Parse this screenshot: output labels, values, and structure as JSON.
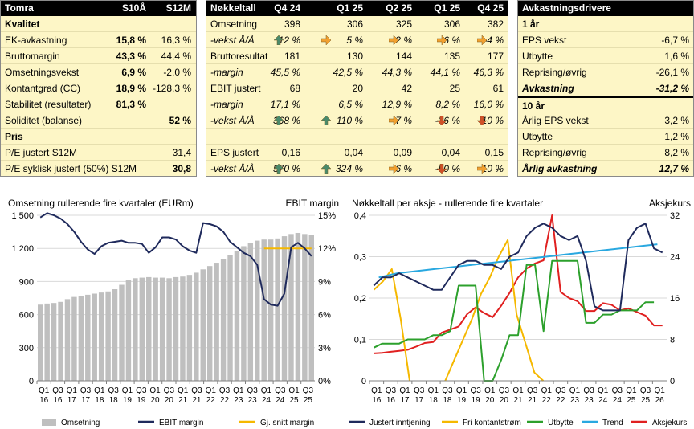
{
  "kvalitet": {
    "title": "Tomra",
    "col1": "S10Å",
    "col2": "S12M",
    "rows": [
      {
        "label": "Kvalitet",
        "v1": "",
        "v2": "",
        "bold": true
      },
      {
        "label": "EK-avkastning",
        "v1": "15,8 %",
        "v2": "16,3 %"
      },
      {
        "label": "Bruttomargin",
        "v1": "43,3 %",
        "v2": "44,4 %"
      },
      {
        "label": "Omsetningsvekst",
        "v1": "6,9 %",
        "v2": "-2,0 %"
      },
      {
        "label": "Kontantgrad (CC)",
        "v1": "18,9 %",
        "v2": "-128,3 %"
      },
      {
        "label": "Stabilitet (resultater)",
        "v1": "81,3 %",
        "v2": ""
      },
      {
        "label": "Soliditet (balanse)",
        "v1": "",
        "v2": "52 %",
        "v2bold": true
      },
      {
        "label": "Pris",
        "v1": "",
        "v2": "",
        "bold": true
      },
      {
        "label": "P/E justert S12M",
        "v1": "",
        "v2": "31,4"
      },
      {
        "label": "P/E syklisk justert (50%) S12M",
        "v1": "",
        "v2": "30,8",
        "v2bold": true
      }
    ]
  },
  "nokkeltall": {
    "title": "Nøkkeltall",
    "cols": [
      "Q4 24",
      "Q1 25",
      "Q2 25",
      "Q1 25",
      "Q4 25"
    ],
    "rows": [
      {
        "label": "Omsetning",
        "values": [
          "398",
          "306",
          "325",
          "306",
          "382"
        ]
      },
      {
        "label": "-vekst Å/Å",
        "italic": true,
        "values": [
          "12 %",
          "5 %",
          "-2 %",
          "-6 %",
          "-4 %"
        ],
        "arrows": [
          "up",
          "right",
          "right",
          "right",
          "right"
        ]
      },
      {
        "label": "Bruttoresultat",
        "values": [
          "181",
          "130",
          "144",
          "135",
          "177"
        ]
      },
      {
        "label": "-margin",
        "italic": true,
        "values": [
          "45,5 %",
          "42,5 %",
          "44,3 %",
          "44,1 %",
          "46,3 %"
        ]
      },
      {
        "label": "EBIT justert",
        "values": [
          "68",
          "20",
          "42",
          "25",
          "61"
        ]
      },
      {
        "label": "-margin",
        "italic": true,
        "values": [
          "17,1 %",
          "6,5 %",
          "12,9 %",
          "8,2 %",
          "16,0 %"
        ]
      },
      {
        "label": "-vekst Å/Å",
        "italic": true,
        "values": [
          "368 %",
          "110 %",
          "7 %",
          "-36 %",
          "-10 %"
        ],
        "arrows": [
          "up",
          "up",
          "right",
          "down",
          "down"
        ]
      },
      {
        "label": "",
        "values": [
          "",
          "",
          "",
          "",
          ""
        ]
      },
      {
        "label": "EPS justert",
        "values": [
          "0,16",
          "0,04",
          "0,09",
          "0,04",
          "0,15"
        ]
      },
      {
        "label": "-vekst Å/Å",
        "italic": true,
        "values": [
          "570 %",
          "324 %",
          "6 %",
          "-50 %",
          "-10 %"
        ],
        "arrows": [
          "up",
          "up",
          "right",
          "down",
          "right"
        ]
      }
    ]
  },
  "avkastning": {
    "title": "Avkastningsdrivere",
    "rows": [
      {
        "label": "1 år",
        "value": "",
        "bold": true
      },
      {
        "label": "EPS vekst",
        "value": "-6,7 %"
      },
      {
        "label": "Utbytte",
        "value": "1,6 %"
      },
      {
        "label": "Reprising/øvrig",
        "value": "-26,1 %"
      },
      {
        "label": "Avkastning",
        "value": "-31,2 %",
        "bold": true,
        "italic": true
      },
      {
        "label": "10 år",
        "value": "",
        "bold": true
      },
      {
        "label": "Årlig EPS vekst",
        "value": "3,2 %"
      },
      {
        "label": "Utbytte",
        "value": "1,2 %"
      },
      {
        "label": "Reprising/øvrig",
        "value": "8,2 %"
      },
      {
        "label": "Årlig avkastning",
        "value": "12,7 %",
        "bold": true,
        "italic": true
      }
    ]
  },
  "colors": {
    "panel_bg": "#fdf6c6",
    "bar": "#bfbfbf",
    "navy": "#1f2a5c",
    "orange": "#f5b800",
    "green": "#2ca02c",
    "blue": "#29a8e0",
    "red": "#e02020",
    "arrow_up": "#4a8a6a",
    "arrow_right": "#f0a030",
    "arrow_down": "#d05028"
  },
  "chart_data": [
    {
      "type": "bar",
      "title": "Omsetning rullerende fire kvartaler (EURm)",
      "ylabel_right": "EBIT margin",
      "ylim": [
        0,
        1500
      ],
      "yticks": [
        "0",
        "300",
        "600",
        "900",
        "1 200",
        "1 500"
      ],
      "ylim_right": [
        0,
        15
      ],
      "yticks_right": [
        "0%",
        "3%",
        "6%",
        "9%",
        "12%",
        "15%"
      ],
      "x_top": [
        "Q1",
        "Q3",
        "Q1",
        "Q3",
        "Q1",
        "Q3",
        "Q1",
        "Q3",
        "Q1",
        "Q3",
        "Q1",
        "Q3",
        "Q1",
        "Q3",
        "Q1",
        "Q3",
        "Q1",
        "Q3",
        "Q1",
        "Q3"
      ],
      "x_bottom": [
        "16",
        "16",
        "17",
        "17",
        "18",
        "18",
        "19",
        "19",
        "20",
        "20",
        "21",
        "21",
        "22",
        "22",
        "23",
        "23",
        "24",
        "24",
        "25",
        "25"
      ],
      "series": [
        {
          "name": "Omsetning",
          "kind": "bar",
          "values": [
            690,
            700,
            705,
            715,
            740,
            760,
            770,
            780,
            790,
            800,
            810,
            830,
            870,
            910,
            930,
            935,
            940,
            935,
            935,
            930,
            940,
            945,
            960,
            980,
            1010,
            1040,
            1070,
            1100,
            1140,
            1180,
            1220,
            1250,
            1270,
            1280,
            1280,
            1290,
            1310,
            1330,
            1340,
            1330,
            1320
          ]
        },
        {
          "name": "EBIT margin",
          "kind": "line",
          "values": [
            14.8,
            15.2,
            15.0,
            14.7,
            14.2,
            13.5,
            12.6,
            11.9,
            11.5,
            12.2,
            12.5,
            12.6,
            12.7,
            12.5,
            12.5,
            12.4,
            11.6,
            12.1,
            13.0,
            13.0,
            12.8,
            12.2,
            11.8,
            11.6,
            14.3,
            14.2,
            14.0,
            13.5,
            12.6,
            12.1,
            11.6,
            11.3,
            10.5,
            7.4,
            6.9,
            6.8,
            7.9,
            12.1,
            12.5,
            12.0,
            11.3
          ]
        },
        {
          "name": "Gj. snitt margin",
          "kind": "line",
          "values": [
            null,
            null,
            null,
            null,
            null,
            null,
            null,
            null,
            null,
            null,
            null,
            null,
            null,
            null,
            null,
            null,
            null,
            null,
            null,
            null,
            null,
            null,
            null,
            null,
            null,
            null,
            null,
            null,
            null,
            null,
            null,
            null,
            null,
            12.0,
            12.0,
            12.0,
            12.0,
            12.0,
            12.0,
            12.0,
            12.0
          ]
        }
      ]
    },
    {
      "type": "line",
      "title": "Nøkkeltall per aksje - rullerende fire kvartaler",
      "ylabel_right": "Aksjekurs",
      "ylim": [
        0,
        0.4
      ],
      "yticks": [
        "0",
        "0,1",
        "0,2",
        "0,3",
        "0,4"
      ],
      "ylim_right": [
        0,
        32
      ],
      "yticks_right": [
        "0",
        "8",
        "16",
        "24",
        "32"
      ],
      "x_top": [
        "Q1",
        "Q3",
        "Q1",
        "Q3",
        "Q1",
        "Q3",
        "Q1",
        "Q3",
        "Q1",
        "Q3",
        "Q1",
        "Q3",
        "Q1",
        "Q3",
        "Q1",
        "Q3",
        "Q1",
        "Q3",
        "Q1",
        "Q3",
        "Q1"
      ],
      "x_bottom": [
        "16",
        "16",
        "17",
        "17",
        "18",
        "18",
        "19",
        "19",
        "20",
        "20",
        "21",
        "21",
        "22",
        "22",
        "23",
        "23",
        "24",
        "24",
        "25",
        "25",
        "26"
      ],
      "series": [
        {
          "name": "Justert inntjening",
          "values": [
            0.23,
            0.25,
            0.25,
            0.26,
            0.25,
            0.24,
            0.23,
            0.22,
            0.22,
            0.25,
            0.28,
            0.29,
            0.29,
            0.28,
            0.28,
            0.27,
            0.3,
            0.31,
            0.35,
            0.37,
            0.38,
            0.37,
            0.35,
            0.34,
            0.35,
            0.29,
            0.18,
            0.17,
            0.17,
            0.17,
            0.34,
            0.37,
            0.38,
            0.32,
            0.31
          ]
        },
        {
          "name": "Fri kontantstrøm",
          "values": [
            0.22,
            0.24,
            0.27,
            0.15,
            0.0,
            null,
            null,
            null,
            0.0,
            0.05,
            0.1,
            0.15,
            0.21,
            0.25,
            0.3,
            0.34,
            0.16,
            0.09,
            0.02,
            0.0
          ]
        },
        {
          "name": "Utbytte",
          "values": [
            0.08,
            0.09,
            0.09,
            0.09,
            0.1,
            0.1,
            0.1,
            0.11,
            0.11,
            0.12,
            0.23,
            0.23,
            0.23,
            0.0,
            0.0,
            0.05,
            0.11,
            0.11,
            0.28,
            0.28,
            0.12,
            0.29,
            0.29,
            0.29,
            0.29,
            0.14,
            0.14,
            0.16,
            0.16,
            0.17,
            0.17,
            0.17,
            0.19,
            0.19
          ]
        },
        {
          "name": "Trend",
          "values": [
            0.25,
            0.26,
            0.265,
            0.27,
            0.275,
            0.28,
            0.285,
            0.29,
            0.295,
            0.3,
            0.305,
            0.31,
            0.315,
            0.32,
            0.325,
            0.33
          ]
        },
        {
          "name": "Aksjekurs",
          "values": [
            5.3,
            5.4,
            5.6,
            5.8,
            6.0,
            6.6,
            7.3,
            7.5,
            9.3,
            9.9,
            10.5,
            12.9,
            14.2,
            13.1,
            12.3,
            14.5,
            17.0,
            20.0,
            21.7,
            22.7,
            23.3,
            32.0,
            17.2,
            16.0,
            15.4,
            13.5,
            13.5,
            15.0,
            14.7,
            13.6,
            14.0,
            13.3,
            12.6,
            10.7,
            10.7
          ]
        }
      ]
    }
  ],
  "legends": {
    "left": [
      "Omsetning",
      "EBIT margin",
      "Gj. snitt margin"
    ],
    "right": [
      "Justert inntjening",
      "Fri kontantstrøm",
      "Utbytte",
      "Trend",
      "Aksjekurs"
    ]
  }
}
